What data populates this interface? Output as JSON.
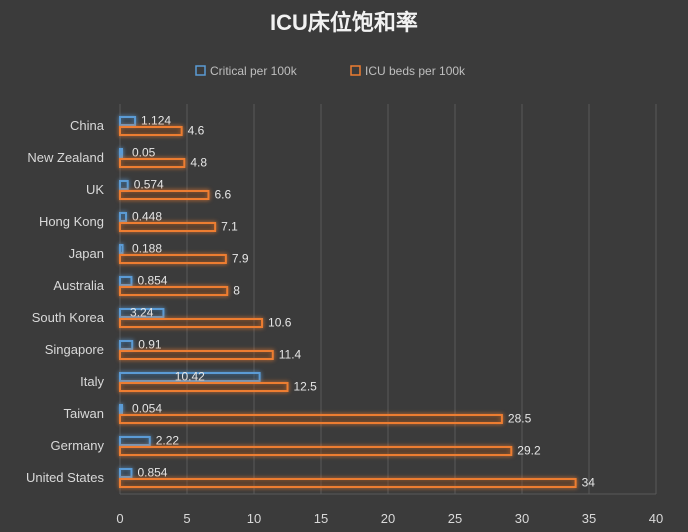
{
  "chart_data": {
    "type": "bar",
    "orientation": "horizontal",
    "title": "ICU床位饱和率",
    "categories": [
      "China",
      "New Zealand",
      "UK",
      "Hong Kong",
      "Japan",
      "Australia",
      "South Korea",
      "Singapore",
      "Italy",
      "Taiwan",
      "Germany",
      "United States"
    ],
    "series": [
      {
        "name": "Critical per 100k",
        "color": "#5b9bd5",
        "values": [
          1.124,
          0.05,
          0.574,
          0.448,
          0.188,
          0.854,
          3.24,
          0.91,
          10.42,
          0.054,
          2.22,
          0.854
        ],
        "labels": [
          "1.124",
          "0.05",
          "0.574",
          "0.448",
          "0.188",
          "0.854",
          "3.24",
          "0.91",
          "10.42",
          "0.054",
          "2.22",
          "0.854"
        ]
      },
      {
        "name": "ICU beds per 100k",
        "color": "#ed7d31",
        "values": [
          4.6,
          4.8,
          6.6,
          7.1,
          7.9,
          8,
          10.6,
          11.4,
          12.5,
          28.5,
          29.2,
          34
        ],
        "labels": [
          "4.6",
          "4.8",
          "6.6",
          "7.1",
          "7.9",
          "8",
          "10.6",
          "11.4",
          "12.5",
          "28.5",
          "29.2",
          "34"
        ]
      }
    ],
    "xlim": [
      0,
      40
    ],
    "xticks": [
      "0",
      "5",
      "10",
      "15",
      "20",
      "25",
      "30",
      "35",
      "40"
    ],
    "grid": true,
    "legend": "top"
  }
}
